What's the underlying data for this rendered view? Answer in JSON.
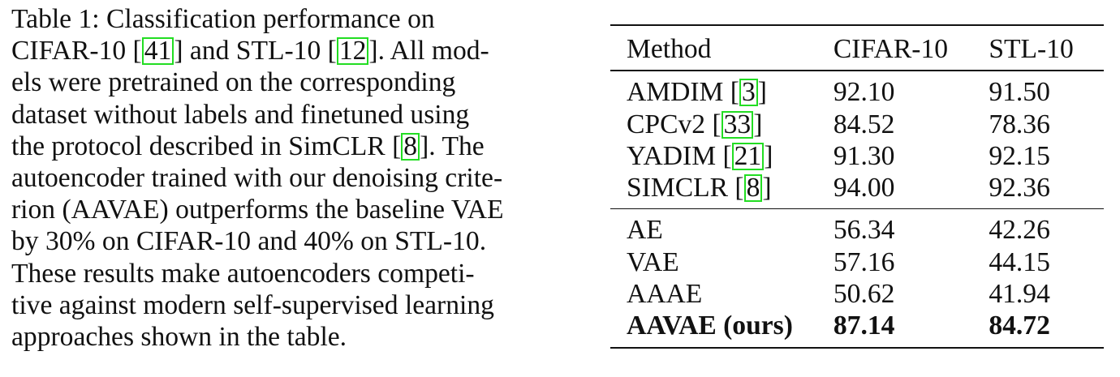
{
  "caption": {
    "lines": [
      [
        "Table 1:  Classification performance on"
      ],
      [
        "CIFAR-10 [",
        {
          "cite": "41"
        },
        "] and STL-10 [",
        {
          "cite": "12"
        },
        "]. All mod-"
      ],
      [
        "els were pretrained on the corresponding"
      ],
      [
        "dataset without labels and finetuned using"
      ],
      [
        "the protocol described in SimCLR [",
        {
          "cite": "8"
        },
        "]. The"
      ],
      [
        "autoencoder trained with our denoising crite-"
      ],
      [
        "rion (AAVAE) outperforms the baseline VAE"
      ],
      [
        "by 30% on CIFAR-10 and 40% on STL-10."
      ],
      [
        "These results make autoencoders competi-"
      ],
      [
        "tive against modern self-supervised learning"
      ],
      [
        "approaches shown in the table."
      ]
    ]
  },
  "table": {
    "headers": [
      "Method",
      "CIFAR-10",
      "STL-10"
    ],
    "groups": [
      [
        {
          "method": "AMDIM [",
          "cite": "3",
          "after": "]",
          "cifar": "92.10",
          "stl": "91.50",
          "bold": false
        },
        {
          "method": "CPCv2 [",
          "cite": "33",
          "after": "]",
          "cifar": "84.52",
          "stl": "78.36",
          "bold": false
        },
        {
          "method": "YADIM [",
          "cite": "21",
          "after": "]",
          "cifar": "91.30",
          "stl": "92.15",
          "bold": false
        },
        {
          "method": "SIMCLR [",
          "cite": "8",
          "after": "]",
          "cifar": "94.00",
          "stl": "92.36",
          "bold": false
        }
      ],
      [
        {
          "method": "AE",
          "cifar": "56.34",
          "stl": "42.26",
          "bold": false
        },
        {
          "method": "VAE",
          "cifar": "57.16",
          "stl": "44.15",
          "bold": false
        },
        {
          "method": "AAAE",
          "cifar": "50.62",
          "stl": "41.94",
          "bold": false
        },
        {
          "method": "AAVAE (ours)",
          "cifar": "87.14",
          "stl": "84.72",
          "bold": true
        }
      ]
    ]
  }
}
